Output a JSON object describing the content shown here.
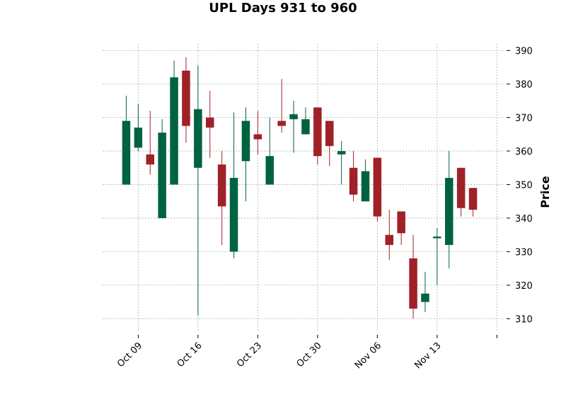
{
  "chart_data": {
    "type": "candlestick",
    "title": "UPL Days 931 to 960",
    "ylabel": "Price",
    "ylim": [
      306.5,
      392
    ],
    "yticks": [
      310,
      320,
      330,
      340,
      350,
      360,
      370,
      380,
      390
    ],
    "x_tick_positions": [
      1,
      6,
      11,
      16,
      21,
      26,
      31
    ],
    "x_tick_labels": [
      "Oct 09",
      "Oct 16",
      "Oct 23",
      "Oct 30",
      "Nov 06",
      "Nov 13",
      ""
    ],
    "grid": true,
    "colors": {
      "up": "#006340",
      "down": "#a02128"
    },
    "candles": [
      {
        "open": 350,
        "high": 376.5,
        "low": 350,
        "close": 369
      },
      {
        "open": 361,
        "high": 374,
        "low": 360,
        "close": 367
      },
      {
        "open": 359,
        "high": 372,
        "low": 353,
        "close": 356
      },
      {
        "open": 340,
        "high": 369.5,
        "low": 340,
        "close": 365.5
      },
      {
        "open": 350,
        "high": 387,
        "low": 350,
        "close": 382
      },
      {
        "open": 384,
        "high": 388,
        "low": 362.5,
        "close": 367.5
      },
      {
        "open": 355,
        "high": 385.5,
        "low": 311,
        "close": 372.5
      },
      {
        "open": 370,
        "high": 378,
        "low": 358,
        "close": 367
      },
      {
        "open": 356,
        "high": 360,
        "low": 332,
        "close": 343.5
      },
      {
        "open": 330,
        "high": 371.5,
        "low": 328,
        "close": 352
      },
      {
        "open": 357,
        "high": 373,
        "low": 345,
        "close": 369
      },
      {
        "open": 365,
        "high": 372,
        "low": 359,
        "close": 363.5
      },
      {
        "open": 350,
        "high": 370,
        "low": 350,
        "close": 358.5
      },
      {
        "open": 369,
        "high": 381.5,
        "low": 365.5,
        "close": 367.5
      },
      {
        "open": 369.5,
        "high": 375,
        "low": 359.5,
        "close": 371
      },
      {
        "open": 365,
        "high": 373,
        "low": 365,
        "close": 369.5
      },
      {
        "open": 373,
        "high": 373,
        "low": 356,
        "close": 358.5
      },
      {
        "open": 369,
        "high": 369,
        "low": 355.5,
        "close": 361.5
      },
      {
        "open": 359,
        "high": 363,
        "low": 350,
        "close": 360
      },
      {
        "open": 355,
        "high": 360,
        "low": 345,
        "close": 347
      },
      {
        "open": 345,
        "high": 357.5,
        "low": 345,
        "close": 354
      },
      {
        "open": 358,
        "high": 358,
        "low": 339,
        "close": 340.5
      },
      {
        "open": 335,
        "high": 342.5,
        "low": 327.5,
        "close": 332
      },
      {
        "open": 342,
        "high": 342,
        "low": 332,
        "close": 335.5
      },
      {
        "open": 328,
        "high": 335,
        "low": 310,
        "close": 313
      },
      {
        "open": 315,
        "high": 324,
        "low": 312,
        "close": 317.5
      },
      {
        "open": 334,
        "high": 337,
        "low": 320,
        "close": 334.5
      },
      {
        "open": 332,
        "high": 360,
        "low": 325,
        "close": 352
      },
      {
        "open": 355,
        "high": 355,
        "low": 340.5,
        "close": 343
      },
      {
        "open": 349,
        "high": 349,
        "low": 340.5,
        "close": 342.5
      }
    ]
  }
}
